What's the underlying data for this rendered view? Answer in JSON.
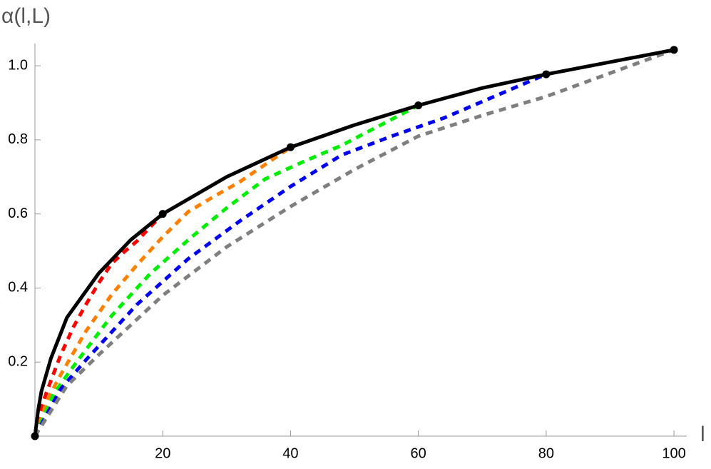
{
  "chart_data": {
    "type": "line",
    "y_label": "α(l,L)",
    "x_label": "l",
    "xlim": [
      0,
      102
    ],
    "ylim": [
      0,
      1.06
    ],
    "xticks": [
      20,
      40,
      60,
      80,
      100
    ],
    "yticks": [
      0.2,
      0.4,
      0.6,
      0.8,
      {
        "value": 1,
        "label": "1.0"
      }
    ],
    "series": [
      {
        "color": "#ff0000",
        "style": "dashed",
        "x": [
          0,
          1,
          2,
          4,
          6,
          8,
          10,
          12,
          14,
          16,
          18,
          20
        ],
        "values": [
          0,
          0.078,
          0.127,
          0.218,
          0.294,
          0.356,
          0.414,
          0.466,
          0.498,
          0.527,
          0.564,
          0.6
        ]
      },
      {
        "color": "#ff8000",
        "style": "dashed",
        "x": [
          0,
          2,
          4,
          8,
          12,
          16,
          20,
          24,
          28,
          32,
          36,
          40
        ],
        "values": [
          0,
          0.101,
          0.165,
          0.284,
          0.382,
          0.463,
          0.538,
          0.606,
          0.647,
          0.686,
          0.733,
          0.78
        ]
      },
      {
        "color": "#00ee00",
        "style": "dashed",
        "x": [
          0,
          3,
          6,
          12,
          18,
          24,
          30,
          36,
          42,
          48,
          54,
          60
        ],
        "values": [
          0,
          0.116,
          0.188,
          0.325,
          0.438,
          0.53,
          0.616,
          0.694,
          0.741,
          0.785,
          0.839,
          0.893
        ]
      },
      {
        "color": "#0000ee",
        "style": "dashed",
        "x": [
          0,
          4,
          8,
          16,
          24,
          32,
          40,
          48,
          56,
          64,
          72,
          80
        ],
        "values": [
          0,
          0.127,
          0.206,
          0.356,
          0.479,
          0.58,
          0.674,
          0.759,
          0.811,
          0.859,
          0.918,
          0.977
        ]
      },
      {
        "color": "#7f7f7f",
        "style": "dashed",
        "x": [
          0,
          5,
          10,
          20,
          30,
          40,
          50,
          60,
          70,
          80,
          90,
          100
        ],
        "values": [
          0,
          0.136,
          0.22,
          0.38,
          0.511,
          0.62,
          0.72,
          0.81,
          0.866,
          0.917,
          0.98,
          1.043
        ]
      },
      {
        "color": "#000000",
        "style": "solid",
        "x": [
          0,
          0.5,
          1,
          2.5,
          5,
          10,
          15,
          20,
          30,
          40,
          50,
          60,
          70,
          80,
          90,
          100
        ],
        "values": [
          0,
          0.07,
          0.12,
          0.21,
          0.32,
          0.44,
          0.53,
          0.6,
          0.7,
          0.78,
          0.84,
          0.893,
          0.94,
          0.977,
          1.01,
          1.043
        ]
      },
      {
        "color": "#000000",
        "style": "points",
        "x": [
          0,
          20,
          40,
          60,
          80,
          100
        ],
        "values": [
          0,
          0.6,
          0.78,
          0.893,
          0.977,
          1.043
        ]
      }
    ]
  }
}
